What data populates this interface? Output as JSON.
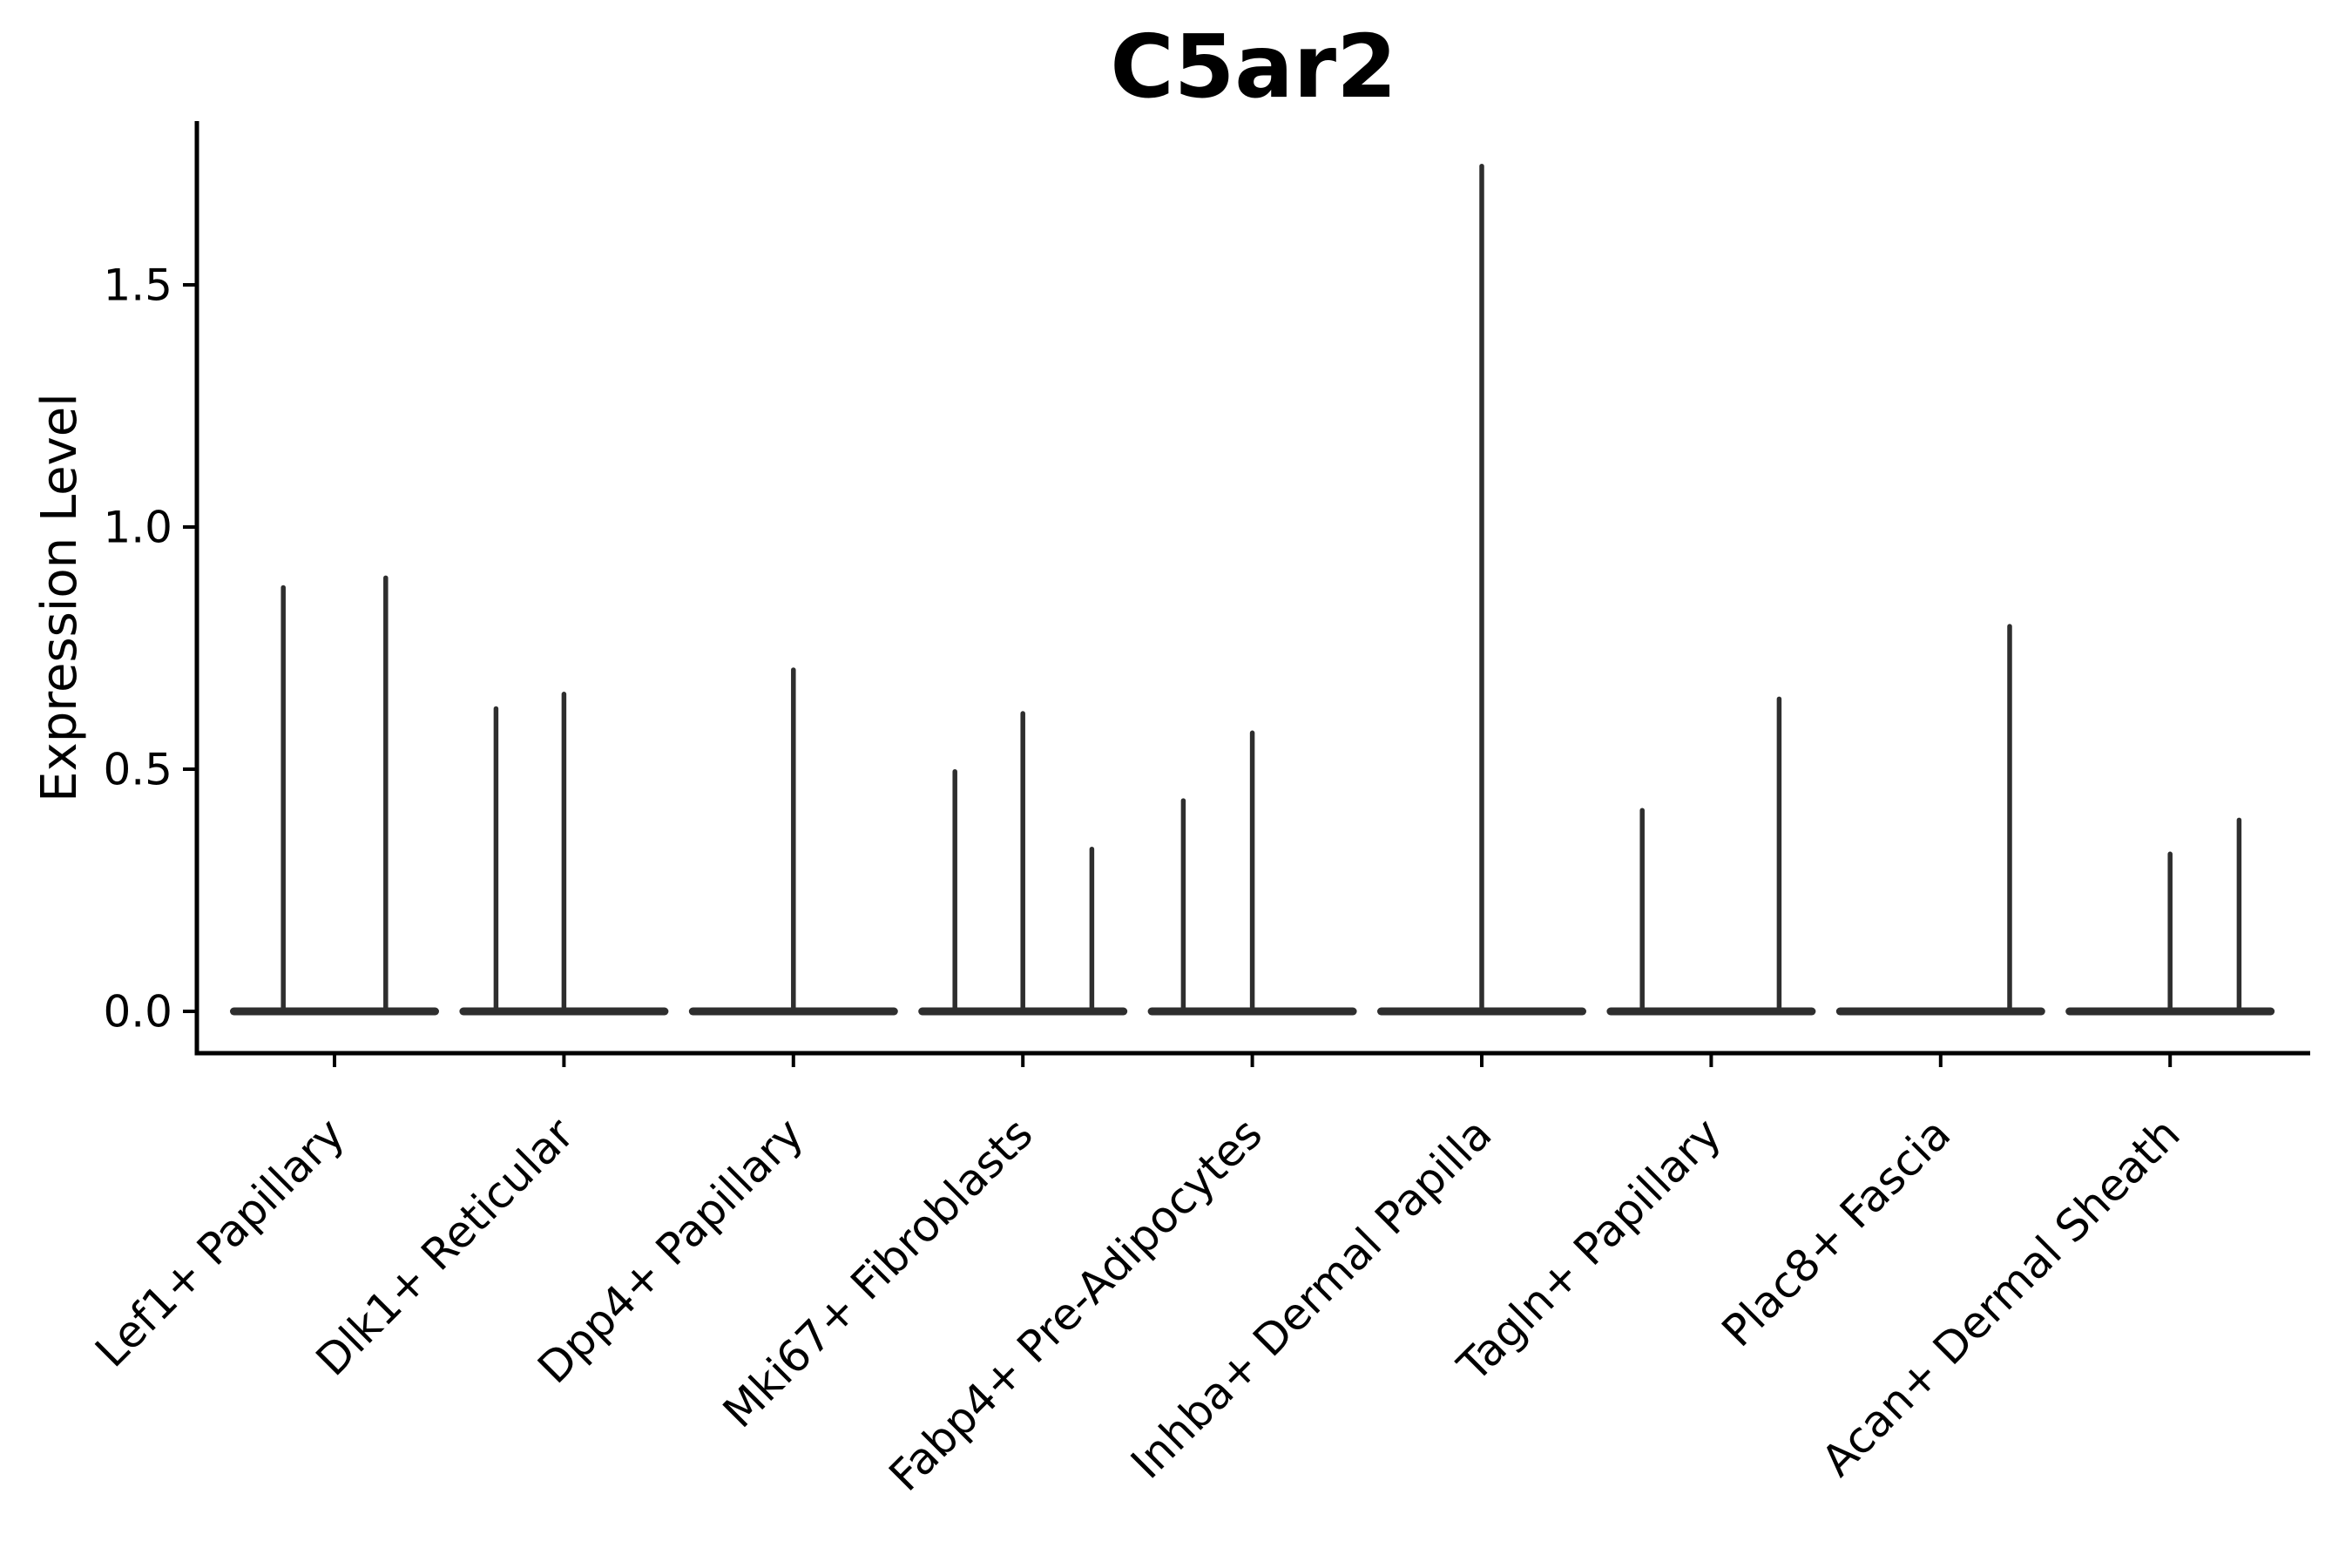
{
  "figure": {
    "title": "C5ar2",
    "y_axis_label": "Expression Level",
    "background_color": "#ffffff",
    "axis_color": "#000000",
    "violin_color": "#2e2e2e"
  },
  "chart_data": {
    "type": "violin",
    "title": "C5ar2",
    "xlabel": "",
    "ylabel": "Expression Level",
    "categories": [
      "Lef1+ Papillary",
      "Dlk1+ Reticular",
      "Dpp4+ Papillary",
      "Mki67+ Fibroblasts",
      "Fabp4+ Pre-Adipocytes",
      "Inhba+ Dermal Papilla",
      "Tagln+ Papillary",
      "Plac8+ Fascia",
      "Acan+ Dermal Sheath"
    ],
    "y_ticks": [
      0.0,
      0.5,
      1.0,
      1.5
    ],
    "y_tick_labels": [
      "0.0",
      "0.5",
      "1.0",
      "1.5"
    ],
    "ylim": [
      -0.086,
      1.84
    ],
    "grid": false,
    "legend": "none",
    "x_tick_rotation": 45,
    "description": "Each category shows a violin that is flat and wide at expression 0 with one or more very thin vertical spikes rising to the maximum expression of small cell subsets.",
    "series": [
      {
        "name": "Lef1+ Papillary",
        "zero_base": true,
        "spikes": [
          {
            "offset": -0.49,
            "max": 0.88
          },
          {
            "offset": 0.49,
            "max": 0.9
          }
        ]
      },
      {
        "name": "Dlk1+ Reticular",
        "zero_base": true,
        "spikes": [
          {
            "offset": -0.65,
            "max": 0.63
          },
          {
            "offset": 0.0,
            "max": 0.66
          }
        ]
      },
      {
        "name": "Dpp4+ Papillary",
        "zero_base": true,
        "spikes": [
          {
            "offset": 0.0,
            "max": 0.71
          }
        ]
      },
      {
        "name": "Mki67+ Fibroblasts",
        "zero_base": true,
        "spikes": [
          {
            "offset": -0.65,
            "max": 0.5
          },
          {
            "offset": 0.0,
            "max": 0.62
          },
          {
            "offset": 0.66,
            "max": 0.34
          }
        ]
      },
      {
        "name": "Fabp4+ Pre-Adipocytes",
        "zero_base": true,
        "spikes": [
          {
            "offset": -0.66,
            "max": 0.44
          },
          {
            "offset": 0.0,
            "max": 0.58
          }
        ]
      },
      {
        "name": "Inhba+ Dermal Papilla",
        "zero_base": true,
        "spikes": [
          {
            "offset": 0.0,
            "max": 1.75
          }
        ]
      },
      {
        "name": "Tagln+ Papillary",
        "zero_base": true,
        "spikes": [
          {
            "offset": -0.66,
            "max": 0.42
          },
          {
            "offset": 0.65,
            "max": 0.65
          }
        ]
      },
      {
        "name": "Plac8+ Fascia",
        "zero_base": true,
        "spikes": [
          {
            "offset": 0.66,
            "max": 0.8
          }
        ]
      },
      {
        "name": "Acan+ Dermal Sheath",
        "zero_base": true,
        "spikes": [
          {
            "offset": 0.0,
            "max": 0.33
          },
          {
            "offset": 0.66,
            "max": 0.4
          }
        ]
      }
    ]
  }
}
